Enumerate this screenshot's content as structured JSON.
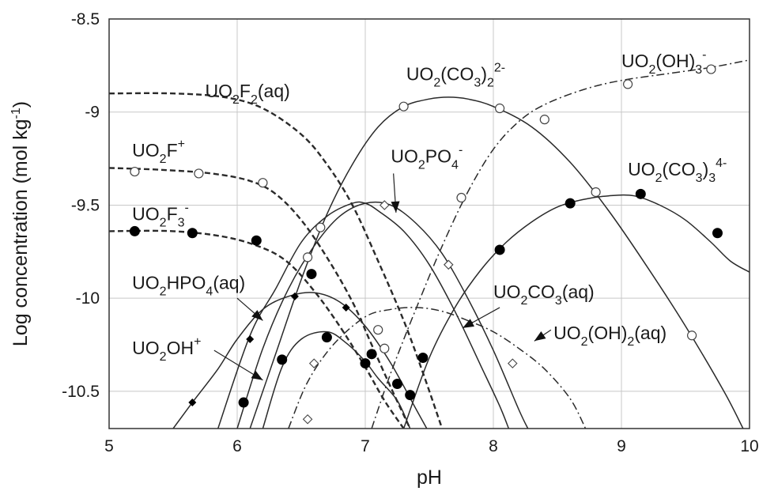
{
  "chart_data": {
    "type": "line",
    "title": "",
    "xlabel": "pH",
    "ylabel": "Log concentration (mol kg-1)",
    "ylabel_parts": {
      "main": "Log concentration (mol kg",
      "sup": "-1",
      "close": ")"
    },
    "xlim": [
      5,
      10
    ],
    "ylim": [
      -10.7,
      -8.5
    ],
    "xticks": [
      5,
      6,
      7,
      8,
      9,
      10
    ],
    "xtick_labels": [
      "5",
      "6",
      "7",
      "8",
      "9",
      "10"
    ],
    "yticks": [
      -8.5,
      -9,
      -9.5,
      -10,
      -10.5
    ],
    "ytick_labels": [
      "-8.5",
      "-9",
      "-9.5",
      "-10",
      "-10.5"
    ],
    "grid": true,
    "legend": "none",
    "series": [
      {
        "name": "UO2F2(aq)",
        "label_parts": [
          [
            "UO",
            ""
          ],
          [
            "2",
            "sub"
          ],
          [
            "F",
            ""
          ],
          [
            "2",
            "sub"
          ],
          [
            "(aq)",
            ""
          ]
        ],
        "style": "dashed",
        "marker": "none",
        "curve": [
          [
            5.0,
            -8.9
          ],
          [
            5.5,
            -8.9
          ],
          [
            5.9,
            -8.92
          ],
          [
            6.2,
            -8.98
          ],
          [
            6.5,
            -9.12
          ],
          [
            6.7,
            -9.28
          ],
          [
            6.9,
            -9.5
          ],
          [
            7.1,
            -9.8
          ],
          [
            7.3,
            -10.12
          ],
          [
            7.45,
            -10.4
          ],
          [
            7.6,
            -10.7
          ]
        ],
        "points": []
      },
      {
        "name": "UO2F+",
        "label_parts": [
          [
            "UO",
            ""
          ],
          [
            "2",
            "sub"
          ],
          [
            "F",
            ""
          ],
          [
            "+",
            "sup"
          ]
        ],
        "style": "dashed",
        "marker": "open-circle",
        "curve": [
          [
            5.0,
            -9.3
          ],
          [
            5.4,
            -9.31
          ],
          [
            5.8,
            -9.33
          ],
          [
            6.1,
            -9.37
          ],
          [
            6.3,
            -9.44
          ],
          [
            6.5,
            -9.58
          ],
          [
            6.7,
            -9.78
          ],
          [
            6.9,
            -10.02
          ],
          [
            7.05,
            -10.25
          ],
          [
            7.2,
            -10.48
          ],
          [
            7.35,
            -10.7
          ]
        ],
        "points": [
          [
            5.2,
            -9.32
          ],
          [
            5.7,
            -9.33
          ],
          [
            6.2,
            -9.38
          ],
          [
            6.65,
            -9.62
          ],
          [
            7.1,
            -10.17
          ],
          [
            7.15,
            -10.27
          ]
        ]
      },
      {
        "name": "UO2F3-",
        "label_parts": [
          [
            "UO",
            ""
          ],
          [
            "2",
            "sub"
          ],
          [
            "F",
            ""
          ],
          [
            "3",
            "sub"
          ],
          [
            "-",
            "sup"
          ]
        ],
        "style": "dashed",
        "marker": "filled-circle",
        "curve": [
          [
            5.0,
            -9.64
          ],
          [
            5.5,
            -9.64
          ],
          [
            5.9,
            -9.67
          ],
          [
            6.2,
            -9.73
          ],
          [
            6.4,
            -9.81
          ],
          [
            6.6,
            -9.96
          ],
          [
            6.8,
            -10.15
          ],
          [
            7.0,
            -10.37
          ],
          [
            7.15,
            -10.55
          ],
          [
            7.3,
            -10.7
          ]
        ],
        "points": [
          [
            5.2,
            -9.64
          ],
          [
            5.65,
            -9.65
          ],
          [
            6.15,
            -9.69
          ],
          [
            6.58,
            -9.87
          ],
          [
            7.05,
            -10.3
          ],
          [
            7.25,
            -10.46
          ]
        ]
      },
      {
        "name": "UO2(CO3)2 2-",
        "label_parts": [
          [
            "UO",
            ""
          ],
          [
            "2",
            "sub"
          ],
          [
            "(CO",
            ""
          ],
          [
            "3",
            "sub"
          ],
          [
            ")",
            ""
          ],
          [
            "2",
            "sub"
          ],
          [
            "2-",
            "sup"
          ]
        ],
        "style": "solid",
        "marker": "open-circle",
        "curve": [
          [
            6.1,
            -10.7
          ],
          [
            6.3,
            -10.3
          ],
          [
            6.5,
            -9.9
          ],
          [
            6.7,
            -9.55
          ],
          [
            6.9,
            -9.28
          ],
          [
            7.1,
            -9.08
          ],
          [
            7.3,
            -8.97
          ],
          [
            7.5,
            -8.93
          ],
          [
            7.65,
            -8.92
          ],
          [
            7.8,
            -8.93
          ],
          [
            8.0,
            -8.97
          ],
          [
            8.3,
            -9.08
          ],
          [
            8.6,
            -9.27
          ],
          [
            8.9,
            -9.53
          ],
          [
            9.2,
            -9.83
          ],
          [
            9.5,
            -10.15
          ],
          [
            9.8,
            -10.5
          ],
          [
            9.95,
            -10.7
          ]
        ],
        "points": [
          [
            6.55,
            -9.78
          ],
          [
            7.3,
            -8.97
          ],
          [
            8.05,
            -8.98
          ],
          [
            8.8,
            -9.43
          ],
          [
            9.55,
            -10.2
          ]
        ]
      },
      {
        "name": "UO2(OH)3-",
        "label_parts": [
          [
            "UO",
            ""
          ],
          [
            "2",
            "sub"
          ],
          [
            "(OH)",
            ""
          ],
          [
            "3",
            "sub"
          ],
          [
            "-",
            "sup"
          ]
        ],
        "style": "dashdot",
        "marker": "open-circle",
        "curve": [
          [
            7.05,
            -10.7
          ],
          [
            7.2,
            -10.4
          ],
          [
            7.4,
            -10.05
          ],
          [
            7.6,
            -9.72
          ],
          [
            7.8,
            -9.43
          ],
          [
            8.0,
            -9.2
          ],
          [
            8.2,
            -9.05
          ],
          [
            8.4,
            -8.96
          ],
          [
            8.7,
            -8.88
          ],
          [
            9.0,
            -8.83
          ],
          [
            9.4,
            -8.79
          ],
          [
            9.7,
            -8.76
          ],
          [
            10.0,
            -8.72
          ]
        ],
        "points": [
          [
            7.75,
            -9.46
          ],
          [
            8.4,
            -9.04
          ],
          [
            9.05,
            -8.85
          ],
          [
            9.7,
            -8.77
          ]
        ]
      },
      {
        "name": "UO2PO4-",
        "label_parts": [
          [
            "UO",
            ""
          ],
          [
            "2",
            "sub"
          ],
          [
            "PO",
            ""
          ],
          [
            "4",
            "sub"
          ],
          [
            "-",
            "sup"
          ]
        ],
        "style": "solid",
        "marker": "open-diamond",
        "curve": [
          [
            6.0,
            -10.7
          ],
          [
            6.2,
            -10.27
          ],
          [
            6.4,
            -9.95
          ],
          [
            6.6,
            -9.72
          ],
          [
            6.8,
            -9.56
          ],
          [
            7.0,
            -9.49
          ],
          [
            7.2,
            -9.5
          ],
          [
            7.4,
            -9.6
          ],
          [
            7.6,
            -9.76
          ],
          [
            7.8,
            -10.0
          ],
          [
            8.0,
            -10.28
          ],
          [
            8.2,
            -10.6
          ],
          [
            8.27,
            -10.7
          ]
        ],
        "points": [
          [
            7.15,
            -9.5
          ],
          [
            7.65,
            -9.82
          ],
          [
            8.15,
            -10.35
          ],
          [
            6.6,
            -10.35
          ],
          [
            6.55,
            -10.65
          ]
        ]
      },
      {
        "name": "UO2(CO3)3 4-",
        "label_parts": [
          [
            "UO",
            ""
          ],
          [
            "2",
            "sub"
          ],
          [
            "(CO",
            ""
          ],
          [
            "3",
            "sub"
          ],
          [
            ")",
            ""
          ],
          [
            "3",
            "sub"
          ],
          [
            "4-",
            "sup"
          ]
        ],
        "style": "solid",
        "marker": "filled-circle",
        "curve": [
          [
            7.3,
            -10.7
          ],
          [
            7.5,
            -10.32
          ],
          [
            7.7,
            -10.05
          ],
          [
            7.9,
            -9.85
          ],
          [
            8.1,
            -9.7
          ],
          [
            8.3,
            -9.59
          ],
          [
            8.5,
            -9.51
          ],
          [
            8.7,
            -9.47
          ],
          [
            8.9,
            -9.45
          ],
          [
            9.1,
            -9.45
          ],
          [
            9.3,
            -9.5
          ],
          [
            9.5,
            -9.58
          ],
          [
            9.7,
            -9.7
          ],
          [
            9.85,
            -9.8
          ],
          [
            10.0,
            -9.86
          ]
        ],
        "points": [
          [
            7.45,
            -10.32
          ],
          [
            8.05,
            -9.74
          ],
          [
            8.6,
            -9.49
          ],
          [
            9.15,
            -9.44
          ],
          [
            9.75,
            -9.65
          ]
        ]
      },
      {
        "name": "UO2CO3(aq)",
        "label_parts": [
          [
            "UO",
            ""
          ],
          [
            "2",
            "sub"
          ],
          [
            "CO",
            ""
          ],
          [
            "3",
            "sub"
          ],
          [
            "(aq)",
            ""
          ]
        ],
        "style": "solid",
        "marker": "none",
        "curve": [
          [
            5.85,
            -10.7
          ],
          [
            6.1,
            -10.2
          ],
          [
            6.3,
            -9.95
          ],
          [
            6.5,
            -9.7
          ],
          [
            6.7,
            -9.56
          ],
          [
            6.9,
            -9.49
          ],
          [
            7.0,
            -9.49
          ],
          [
            7.1,
            -9.53
          ],
          [
            7.3,
            -9.64
          ],
          [
            7.5,
            -9.82
          ],
          [
            7.7,
            -10.07
          ],
          [
            7.9,
            -10.36
          ],
          [
            8.05,
            -10.58
          ],
          [
            8.12,
            -10.7
          ]
        ],
        "points": []
      },
      {
        "name": "UO2(OH)2(aq)",
        "label_parts": [
          [
            "UO",
            ""
          ],
          [
            "2",
            "sub"
          ],
          [
            "(OH)",
            ""
          ],
          [
            "2",
            "sub"
          ],
          [
            "(aq)",
            ""
          ]
        ],
        "style": "dashdot",
        "marker": "none",
        "curve": [
          [
            6.4,
            -10.7
          ],
          [
            6.55,
            -10.45
          ],
          [
            6.75,
            -10.25
          ],
          [
            7.0,
            -10.1
          ],
          [
            7.2,
            -10.06
          ],
          [
            7.4,
            -10.05
          ],
          [
            7.6,
            -10.07
          ],
          [
            7.8,
            -10.12
          ],
          [
            8.0,
            -10.18
          ],
          [
            8.2,
            -10.27
          ],
          [
            8.4,
            -10.38
          ],
          [
            8.6,
            -10.54
          ],
          [
            8.72,
            -10.7
          ]
        ],
        "points": []
      },
      {
        "name": "UO2HPO4(aq)",
        "label_parts": [
          [
            "UO",
            ""
          ],
          [
            "2",
            "sub"
          ],
          [
            "HPO",
            ""
          ],
          [
            "4",
            "sub"
          ],
          [
            "(aq)",
            ""
          ]
        ],
        "style": "solid",
        "marker": "filled-diamond",
        "curve": [
          [
            5.5,
            -10.7
          ],
          [
            5.65,
            -10.56
          ],
          [
            5.85,
            -10.38
          ],
          [
            6.0,
            -10.22
          ],
          [
            6.2,
            -10.06
          ],
          [
            6.4,
            -9.99
          ],
          [
            6.6,
            -9.97
          ],
          [
            6.8,
            -10.02
          ],
          [
            7.0,
            -10.15
          ],
          [
            7.2,
            -10.35
          ],
          [
            7.4,
            -10.6
          ],
          [
            7.48,
            -10.7
          ]
        ],
        "points": [
          [
            5.65,
            -10.56
          ],
          [
            6.1,
            -10.22
          ],
          [
            6.45,
            -9.99
          ],
          [
            6.85,
            -10.05
          ],
          [
            7.25,
            -10.46
          ]
        ]
      },
      {
        "name": "UO2OH+",
        "label_parts": [
          [
            "UO",
            ""
          ],
          [
            "2",
            "sub"
          ],
          [
            "OH",
            ""
          ],
          [
            "+",
            "sup"
          ]
        ],
        "style": "solid",
        "marker": "filled-circle",
        "curve": [
          [
            6.2,
            -10.7
          ],
          [
            6.35,
            -10.37
          ],
          [
            6.5,
            -10.22
          ],
          [
            6.7,
            -10.18
          ],
          [
            6.85,
            -10.24
          ],
          [
            7.0,
            -10.34
          ],
          [
            7.1,
            -10.43
          ],
          [
            7.25,
            -10.55
          ],
          [
            7.35,
            -10.7
          ]
        ],
        "points": [
          [
            6.05,
            -10.56
          ],
          [
            6.35,
            -10.33
          ],
          [
            6.7,
            -10.21
          ],
          [
            7.0,
            -10.35
          ],
          [
            7.35,
            -10.52
          ]
        ]
      }
    ],
    "labels": [
      {
        "series": "UO2F2(aq)",
        "at": [
          5.75,
          -8.92
        ]
      },
      {
        "series": "UO2F+",
        "at": [
          5.18,
          -9.24
        ]
      },
      {
        "series": "UO2F3-",
        "at": [
          5.18,
          -9.58
        ]
      },
      {
        "series": "UO2(CO3)2 2-",
        "at": [
          7.32,
          -8.83
        ]
      },
      {
        "series": "UO2(OH)3-",
        "at": [
          9.0,
          -8.76
        ]
      },
      {
        "series": "UO2PO4-",
        "at": [
          7.2,
          -9.27
        ]
      },
      {
        "series": "UO2(CO3)3 4-",
        "at": [
          9.05,
          -9.34
        ]
      },
      {
        "series": "UO2CO3(aq)",
        "at": [
          8.0,
          -10.0
        ]
      },
      {
        "series": "UO2(OH)2(aq)",
        "at": [
          8.47,
          -10.22
        ]
      },
      {
        "series": "UO2HPO4(aq)",
        "at": [
          5.18,
          -9.95
        ]
      },
      {
        "series": "UO2OH+",
        "at": [
          5.18,
          -10.3
        ]
      }
    ],
    "arrows": [
      {
        "from": [
          7.22,
          -9.33
        ],
        "to": [
          7.24,
          -9.54
        ]
      },
      {
        "from": [
          8.05,
          -10.05
        ],
        "to": [
          7.76,
          -10.16
        ]
      },
      {
        "from": [
          8.45,
          -10.17
        ],
        "to": [
          8.32,
          -10.23
        ]
      },
      {
        "from": [
          6.0,
          -10.0
        ],
        "to": [
          6.2,
          -10.12
        ]
      },
      {
        "from": [
          5.82,
          -10.28
        ],
        "to": [
          6.2,
          -10.44
        ]
      }
    ]
  }
}
